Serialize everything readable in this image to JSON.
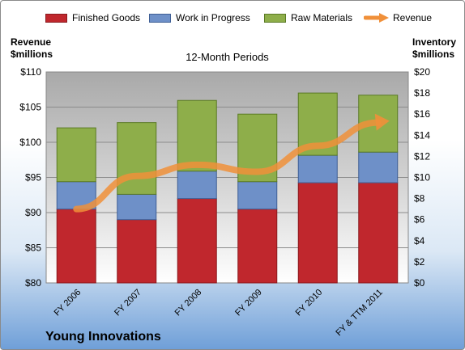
{
  "chart_data": {
    "type": "bar",
    "stacked": true,
    "title": "12-Month Periods",
    "company": "Young Innovations",
    "categories": [
      "FY 2006",
      "FY 2007",
      "FY 2008",
      "FY 2009",
      "FY 2010",
      "FY & TTM 2011"
    ],
    "series": [
      {
        "name": "Finished Goods",
        "color": "#c0272d",
        "values": [
          7.0,
          6.0,
          8.0,
          7.0,
          9.5,
          9.5
        ]
      },
      {
        "name": "Work in Progress",
        "color": "#6e90c8",
        "values": [
          2.6,
          2.4,
          2.6,
          2.6,
          2.6,
          2.9
        ]
      },
      {
        "name": "Raw Materials",
        "color": "#8eae4a",
        "values": [
          5.1,
          6.8,
          6.7,
          6.4,
          5.9,
          5.4
        ]
      }
    ],
    "line_series": {
      "name": "Revenue",
      "color": "#f0903a",
      "values": [
        90.5,
        95.2,
        96.8,
        95.8,
        99.5,
        102.8
      ]
    },
    "y_left": {
      "title": "Revenue\n$millions",
      "min": 80,
      "max": 110,
      "step": 5,
      "ticks": [
        "$80",
        "$85",
        "$90",
        "$95",
        "$100",
        "$105",
        "$110"
      ]
    },
    "y_right": {
      "title": "Inventory\n$millions",
      "min": 0,
      "max": 20,
      "step": 2,
      "ticks": [
        "$0",
        "$2",
        "$4",
        "$6",
        "$8",
        "$10",
        "$12",
        "$14",
        "$16",
        "$18",
        "$20"
      ]
    },
    "grid": true,
    "legend_position": "top"
  }
}
